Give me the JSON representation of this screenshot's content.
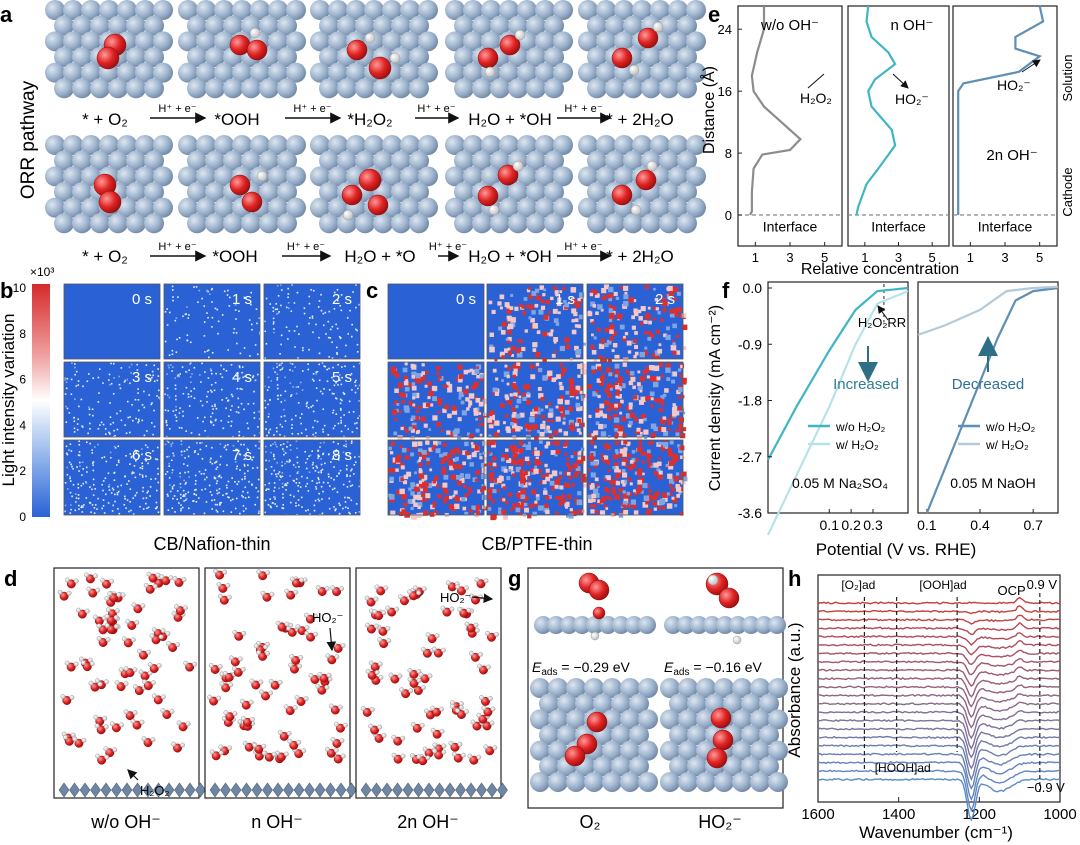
{
  "colors": {
    "substrate": "#8ea6c3",
    "oxygen": "#d92a2a",
    "hydrogen": "#f2f2f2",
    "cyan": "#40b6c2",
    "lightcyan": "#b6e3e8",
    "steel": "#5e8fb4",
    "lightsteel": "#b4cadb",
    "gray": "#8c8c8c",
    "blue_map": "#2f6bdc",
    "red_map": "#dc2f2f"
  },
  "panel_a": {
    "label": "a",
    "side_label": "ORR pathway",
    "row1": [
      "* + O₂",
      "*OOH",
      "*H₂O₂",
      "H₂O + *OH",
      "* + 2H₂O"
    ],
    "row2": [
      "* + O₂",
      "*OOH",
      "H₂O + *O",
      "H₂O + *OH",
      "* + 2H₂O"
    ],
    "step_label": "H⁺ + e⁻"
  },
  "panel_b": {
    "label": "b",
    "times": [
      "0 s",
      "1 s",
      "2 s",
      "3 s",
      "4 s",
      "5 s",
      "6 s",
      "7 s",
      "8 s"
    ],
    "caption": "CB/Nafion-thin",
    "colorbar_title": "×10³",
    "colorbar_ticks": [
      "10",
      "8",
      "6",
      "4",
      "2",
      "0"
    ],
    "ylabel": "Light intensity variation"
  },
  "panel_c": {
    "label": "c",
    "times": [
      "0 s",
      "1 s",
      "2 s"
    ],
    "caption": "CB/PTFE-thin"
  },
  "panel_d": {
    "label": "d",
    "captions": [
      "w/o OH⁻",
      "n OH⁻",
      "2n OH⁻"
    ],
    "annot_h2o2": "H₂O₂",
    "annot_ho2": "HO₂⁻"
  },
  "panel_e": {
    "label": "e",
    "titles": [
      "w/o OH⁻",
      "n OH⁻",
      ""
    ],
    "annotations": [
      "H₂O₂",
      "HO₂⁻",
      "HO₂⁻"
    ],
    "extra": "2n OH⁻",
    "interface": "Interface",
    "ylabel": "Distance (Å)",
    "xlabel": "Relative concentration",
    "yticks": [
      "0",
      "8",
      "16",
      "24"
    ],
    "xticks": [
      "1",
      "3",
      "5"
    ],
    "solution": "Solution",
    "cathode": "Cathode"
  },
  "panel_f": {
    "label": "f",
    "ylabel": "Current density (mA cm⁻²)",
    "xlabel": "Potential (V vs. RHE)",
    "yticks": [
      "0.0",
      "-0.9",
      "-1.8",
      "-2.7",
      "-3.6"
    ],
    "xticks_left": [
      "0.1",
      "0.2",
      "0.3"
    ],
    "xticks_right": [
      "0.1",
      "0.4",
      "0.7"
    ],
    "h2o2rr": "H₂O₂RR",
    "increased": "Increased",
    "decreased": "Decreased",
    "legend": [
      "w/o H₂O₂",
      "w/ H₂O₂"
    ],
    "electrolyte_left": "0.05 M Na₂SO₄",
    "electrolyte_right": "0.05 M NaOH"
  },
  "panel_g": {
    "label": "g",
    "eads_left": "−0.29 eV",
    "eads_right": "−0.16 eV",
    "eads_prefix": "E",
    "eads_sub": "ads",
    "captions": [
      "O₂",
      "HO₂⁻"
    ]
  },
  "panel_h": {
    "label": "h",
    "ylabel": "Absorbance (a.u.)",
    "xlabel": "Wavenumber (cm⁻¹)",
    "xticks": [
      "1600",
      "1400",
      "1200",
      "1000"
    ],
    "annots": [
      "[O₂]ad",
      "[OOH]ad",
      "[HOOH]ad",
      "OCP",
      "0.9 V",
      "−0.9 V"
    ]
  }
}
